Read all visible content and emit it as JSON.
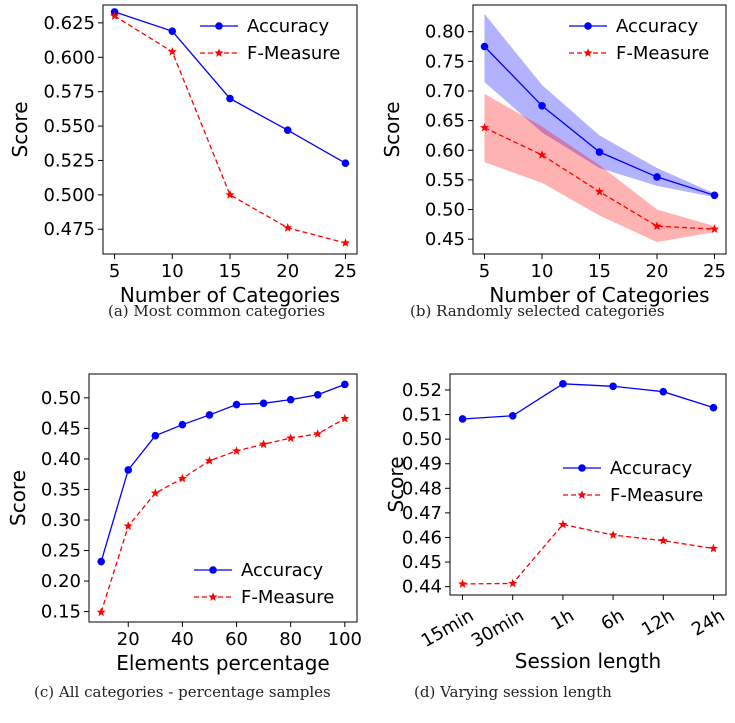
{
  "colors": {
    "accuracy": "#0000ff",
    "fmeasure": "#ff0000"
  },
  "chart_data": [
    {
      "id": "a",
      "type": "line",
      "caption": "(a) Most common categories",
      "xlabel": "Number of Categories",
      "ylabel": "Score",
      "xticks": [
        "5",
        "10",
        "15",
        "20",
        "25"
      ],
      "yticks": [
        "0.475",
        "0.500",
        "0.525",
        "0.550",
        "0.575",
        "0.600",
        "0.625"
      ],
      "xlim": [
        4,
        26
      ],
      "ylim": [
        0.457,
        0.638
      ],
      "legend_position": "top-right",
      "series": [
        {
          "name": "Accuracy",
          "style": "solid-circle",
          "x": [
            5,
            10,
            15,
            20,
            25
          ],
          "y": [
            0.633,
            0.619,
            0.57,
            0.547,
            0.523
          ]
        },
        {
          "name": "F-Measure",
          "style": "dashed-star",
          "x": [
            5,
            10,
            15,
            20,
            25
          ],
          "y": [
            0.63,
            0.604,
            0.5,
            0.476,
            0.465
          ]
        }
      ]
    },
    {
      "id": "b",
      "type": "line",
      "caption": "(b) Randomly selected categories",
      "xlabel": "Number of Categories",
      "ylabel": "Score",
      "xticks": [
        "5",
        "10",
        "15",
        "20",
        "25"
      ],
      "yticks": [
        "0.45",
        "0.50",
        "0.55",
        "0.60",
        "0.65",
        "0.70",
        "0.75",
        "0.80"
      ],
      "xlim": [
        4,
        26
      ],
      "ylim": [
        0.425,
        0.845
      ],
      "legend_position": "top-right",
      "series": [
        {
          "name": "Accuracy",
          "style": "solid-circle",
          "x": [
            5,
            10,
            15,
            20,
            25
          ],
          "y": [
            0.775,
            0.675,
            0.597,
            0.555,
            0.524
          ],
          "band_low": [
            0.715,
            0.63,
            0.57,
            0.54,
            0.521
          ],
          "band_high": [
            0.83,
            0.71,
            0.625,
            0.57,
            0.527
          ]
        },
        {
          "name": "F-Measure",
          "style": "dashed-star",
          "x": [
            5,
            10,
            15,
            20,
            25
          ],
          "y": [
            0.638,
            0.592,
            0.53,
            0.472,
            0.467
          ],
          "band_low": [
            0.58,
            0.545,
            0.49,
            0.445,
            0.462
          ],
          "band_high": [
            0.695,
            0.64,
            0.575,
            0.5,
            0.472
          ]
        }
      ]
    },
    {
      "id": "c",
      "type": "line",
      "caption": "(c) All categories - percentage samples",
      "xlabel": "Elements percentage",
      "ylabel": "Score",
      "xticks": [
        "20",
        "40",
        "60",
        "80",
        "100"
      ],
      "yticks": [
        "0.15",
        "0.20",
        "0.25",
        "0.30",
        "0.35",
        "0.40",
        "0.45",
        "0.50"
      ],
      "xlim": [
        5.5,
        104.5
      ],
      "ylim": [
        0.133,
        0.539
      ],
      "legend_position": "lower-right",
      "series": [
        {
          "name": "Accuracy",
          "style": "solid-circle",
          "x": [
            10,
            20,
            30,
            40,
            50,
            60,
            70,
            80,
            90,
            100
          ],
          "y": [
            0.232,
            0.382,
            0.438,
            0.456,
            0.472,
            0.489,
            0.491,
            0.497,
            0.505,
            0.522
          ]
        },
        {
          "name": "F-Measure",
          "style": "dashed-star",
          "x": [
            10,
            20,
            30,
            40,
            50,
            60,
            70,
            80,
            90,
            100
          ],
          "y": [
            0.149,
            0.29,
            0.344,
            0.368,
            0.397,
            0.413,
            0.424,
            0.434,
            0.441,
            0.466
          ]
        }
      ]
    },
    {
      "id": "d",
      "type": "line",
      "caption": "(d) Varying session length",
      "xlabel": "Session length",
      "ylabel": "Score",
      "xticks": [
        "15min",
        "30min",
        "1h",
        "6h",
        "12h",
        "24h"
      ],
      "yticks": [
        "0.44",
        "0.45",
        "0.46",
        "0.47",
        "0.48",
        "0.49",
        "0.50",
        "0.51",
        "0.52"
      ],
      "xlim": [
        -0.25,
        5.25
      ],
      "ylim": [
        0.4366,
        0.5265
      ],
      "legend_position": "center-right",
      "series": [
        {
          "name": "Accuracy",
          "style": "solid-circle",
          "x": [
            0,
            1,
            2,
            3,
            4,
            5
          ],
          "y": [
            0.5082,
            0.5095,
            0.5225,
            0.5215,
            0.5193,
            0.5128
          ]
        },
        {
          "name": "F-Measure",
          "style": "dashed-star",
          "x": [
            0,
            1,
            2,
            3,
            4,
            5
          ],
          "y": [
            0.4411,
            0.4413,
            0.4653,
            0.461,
            0.4587,
            0.4555
          ]
        }
      ]
    }
  ]
}
